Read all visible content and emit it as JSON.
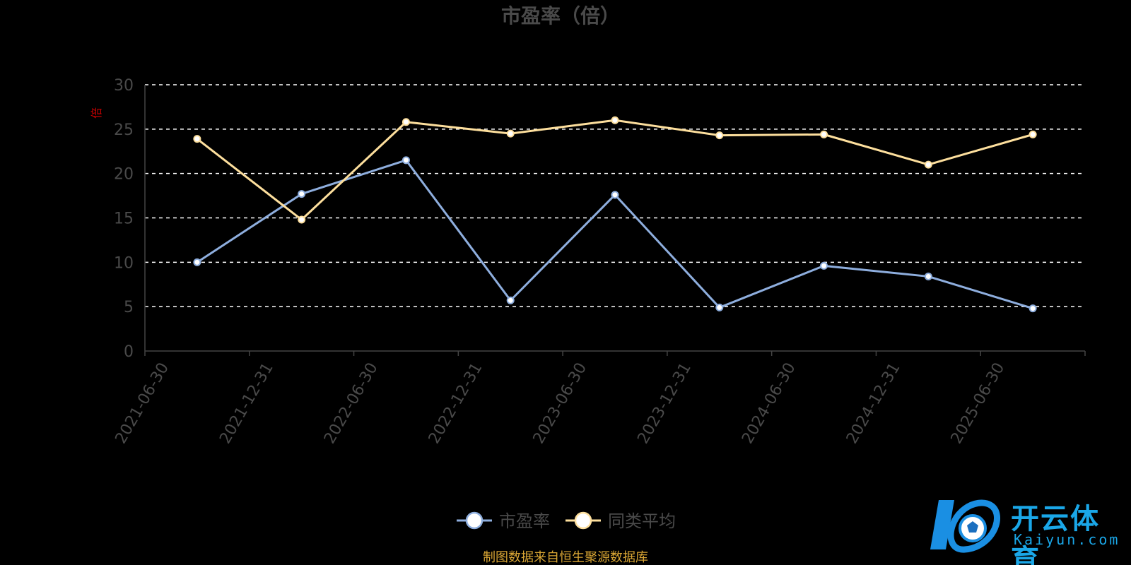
{
  "title": "市盈率（倍）",
  "source_note": "制图数据来自恒生聚源数据库",
  "watermark": {
    "text_cn": "开云体育",
    "text_en": "Kaiyun.com"
  },
  "colors": {
    "pe": "#8eaede",
    "peer_avg": "#fddf9d",
    "grid": "#ffffff",
    "axis": "#444444"
  },
  "chart_data": {
    "type": "line",
    "title": "市盈率（倍）",
    "ylabel": "倍",
    "ylim": [
      0,
      30
    ],
    "yticks": [
      0,
      5,
      10,
      15,
      20,
      25,
      30
    ],
    "grid": true,
    "legend_position": "bottom-center",
    "categories": [
      "2021-06-30",
      "2021-12-31",
      "2022-06-30",
      "2022-12-31",
      "2023-06-30",
      "2023-12-31",
      "2024-06-30",
      "2024-12-31",
      "2025-06-30"
    ],
    "series": [
      {
        "name": "市盈率",
        "values": [
          10.0,
          17.7,
          21.5,
          5.7,
          17.6,
          4.9,
          9.6,
          8.4,
          4.8
        ]
      },
      {
        "name": "同类平均",
        "values": [
          23.9,
          14.8,
          25.8,
          24.5,
          26.0,
          24.3,
          24.4,
          21.0,
          24.4
        ]
      }
    ]
  }
}
